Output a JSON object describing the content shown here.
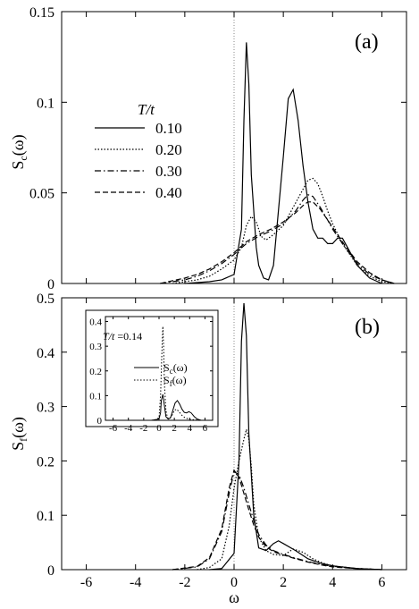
{
  "chart_data": [
    {
      "type": "line",
      "panel_label": "(a)",
      "ylabel_main": "S",
      "ylabel_sub": "c",
      "ylabel_arg": "(ω)",
      "xlabel": "",
      "xlim": [
        -7,
        7
      ],
      "ylim": [
        0,
        0.15
      ],
      "x_ticks": [
        -6,
        -4,
        -2,
        0,
        2,
        4,
        6
      ],
      "x_tick_labels": [
        "",
        "",
        "",
        "",
        "",
        "",
        ""
      ],
      "y_ticks": [
        0,
        0.05,
        0.1,
        0.15
      ],
      "y_tick_labels": [
        "0",
        "0.05",
        "0.1",
        "0.15"
      ],
      "legend_title": "T/t",
      "legend_placement": "upper-left",
      "series": [
        {
          "name": "0.10",
          "dash": "solid",
          "x": [
            -2.0,
            -1.0,
            -0.5,
            0.0,
            0.3,
            0.4,
            0.5,
            0.6,
            0.7,
            0.9,
            1.0,
            1.2,
            1.4,
            1.6,
            1.8,
            2.0,
            2.2,
            2.4,
            2.6,
            2.8,
            3.0,
            3.2,
            3.4,
            3.6,
            3.8,
            4.0,
            4.2,
            4.4,
            4.6,
            5.0,
            5.5,
            6.0
          ],
          "y": [
            0,
            0.001,
            0.002,
            0.005,
            0.03,
            0.09,
            0.133,
            0.11,
            0.06,
            0.02,
            0.01,
            0.003,
            0.002,
            0.01,
            0.04,
            0.07,
            0.102,
            0.107,
            0.09,
            0.065,
            0.045,
            0.03,
            0.025,
            0.025,
            0.022,
            0.022,
            0.025,
            0.025,
            0.02,
            0.01,
            0.003,
            0
          ]
        },
        {
          "name": "0.20",
          "dash": "dotted",
          "x": [
            -2.5,
            -1.5,
            -1.0,
            -0.5,
            0.0,
            0.3,
            0.5,
            0.7,
            0.9,
            1.1,
            1.3,
            1.6,
            2.0,
            2.4,
            2.8,
            3.0,
            3.2,
            3.4,
            3.6,
            3.8,
            4.0,
            4.4,
            5.0,
            5.5,
            6.0,
            6.5
          ],
          "y": [
            0,
            0.002,
            0.004,
            0.008,
            0.013,
            0.02,
            0.032,
            0.037,
            0.034,
            0.026,
            0.024,
            0.027,
            0.032,
            0.042,
            0.052,
            0.057,
            0.058,
            0.055,
            0.048,
            0.04,
            0.033,
            0.022,
            0.01,
            0.004,
            0.001,
            0
          ]
        },
        {
          "name": "0.30",
          "dash": "dashdot",
          "x": [
            -3.0,
            -2.0,
            -1.5,
            -1.0,
            -0.5,
            0.0,
            0.5,
            1.0,
            1.5,
            2.0,
            2.5,
            2.8,
            3.0,
            3.2,
            3.5,
            3.8,
            4.0,
            4.5,
            5.0,
            5.5,
            6.0,
            6.5
          ],
          "y": [
            0,
            0.002,
            0.004,
            0.007,
            0.011,
            0.016,
            0.022,
            0.026,
            0.029,
            0.033,
            0.04,
            0.046,
            0.049,
            0.048,
            0.042,
            0.035,
            0.03,
            0.02,
            0.011,
            0.005,
            0.002,
            0
          ]
        },
        {
          "name": "0.40",
          "dash": "dashed",
          "x": [
            -3.0,
            -2.0,
            -1.5,
            -1.0,
            -0.5,
            0.0,
            0.5,
            1.0,
            1.5,
            2.0,
            2.5,
            2.8,
            3.0,
            3.2,
            3.5,
            3.8,
            4.0,
            4.5,
            5.0,
            5.5,
            6.0,
            6.5
          ],
          "y": [
            0,
            0.003,
            0.005,
            0.008,
            0.012,
            0.017,
            0.023,
            0.027,
            0.03,
            0.034,
            0.039,
            0.043,
            0.045,
            0.045,
            0.041,
            0.035,
            0.031,
            0.021,
            0.012,
            0.006,
            0.002,
            0
          ]
        }
      ]
    },
    {
      "type": "line",
      "panel_label": "(b)",
      "ylabel_main": "S",
      "ylabel_sub": "f",
      "ylabel_arg": "(ω)",
      "xlabel": "ω",
      "xlim": [
        -7,
        7
      ],
      "ylim": [
        0,
        0.5
      ],
      "x_ticks": [
        -6,
        -4,
        -2,
        0,
        2,
        4,
        6
      ],
      "x_tick_labels": [
        "-6",
        "-4",
        "-2",
        "0",
        "2",
        "4",
        "6"
      ],
      "y_ticks": [
        0,
        0.1,
        0.2,
        0.3,
        0.4,
        0.5
      ],
      "y_tick_labels": [
        "0",
        "0.1",
        "0.2",
        "0.3",
        "0.4",
        "0.5"
      ],
      "series": [
        {
          "name": "0.10",
          "dash": "solid",
          "x": [
            -1.0,
            -0.5,
            0.0,
            0.2,
            0.3,
            0.4,
            0.5,
            0.6,
            0.8,
            1.0,
            1.3,
            1.6,
            1.8,
            2.0,
            2.5,
            3.0,
            3.5,
            4.0,
            5.0,
            6.0
          ],
          "y": [
            0,
            0.002,
            0.03,
            0.2,
            0.42,
            0.49,
            0.43,
            0.25,
            0.1,
            0.04,
            0.035,
            0.048,
            0.053,
            0.048,
            0.035,
            0.02,
            0.012,
            0.007,
            0.002,
            0
          ]
        },
        {
          "name": "0.20",
          "dash": "dotted",
          "x": [
            -1.5,
            -1.0,
            -0.5,
            -0.2,
            0.0,
            0.2,
            0.4,
            0.5,
            0.6,
            0.7,
            0.8,
            1.0,
            1.3,
            1.6,
            2.0,
            2.4,
            2.8,
            3.2,
            3.6,
            4.0,
            5.0,
            6.0
          ],
          "y": [
            0,
            0.004,
            0.02,
            0.08,
            0.15,
            0.2,
            0.24,
            0.258,
            0.24,
            0.19,
            0.12,
            0.06,
            0.035,
            0.028,
            0.026,
            0.038,
            0.032,
            0.02,
            0.012,
            0.007,
            0.002,
            0
          ]
        },
        {
          "name": "0.30",
          "dash": "dashdot",
          "x": [
            -2.5,
            -1.5,
            -1.0,
            -0.5,
            -0.2,
            0.0,
            0.2,
            0.4,
            0.6,
            0.8,
            1.0,
            1.3,
            1.6,
            2.0,
            2.5,
            3.0,
            3.5,
            4.0,
            5.0,
            6.0
          ],
          "y": [
            0,
            0.005,
            0.02,
            0.07,
            0.14,
            0.18,
            0.175,
            0.15,
            0.12,
            0.09,
            0.065,
            0.045,
            0.035,
            0.028,
            0.021,
            0.015,
            0.01,
            0.006,
            0.002,
            0
          ]
        },
        {
          "name": "0.40",
          "dash": "dashed",
          "x": [
            -2.5,
            -1.5,
            -1.0,
            -0.5,
            -0.2,
            0.0,
            0.2,
            0.4,
            0.6,
            0.8,
            1.0,
            1.3,
            1.6,
            2.0,
            2.5,
            3.0,
            3.5,
            4.0,
            5.0,
            6.0
          ],
          "y": [
            0,
            0.006,
            0.022,
            0.075,
            0.15,
            0.183,
            0.17,
            0.14,
            0.11,
            0.082,
            0.06,
            0.042,
            0.033,
            0.027,
            0.02,
            0.014,
            0.009,
            0.005,
            0.002,
            0
          ]
        }
      ],
      "inset": {
        "type": "line",
        "title_var": "T/t",
        "title_val": " =0.14",
        "xlim": [
          -7,
          7
        ],
        "ylim": [
          0,
          0.42
        ],
        "x_ticks": [
          -6,
          -4,
          -2,
          0,
          2,
          4,
          6
        ],
        "x_tick_labels": [
          "-6",
          "-4",
          "-2",
          "0",
          "2",
          "4",
          "6"
        ],
        "y_ticks": [
          0,
          0.1,
          0.2,
          0.3,
          0.4
        ],
        "y_tick_labels": [
          "0",
          "0.1",
          "0.2",
          "0.3",
          "0.4"
        ],
        "series": [
          {
            "label_main": "S",
            "label_sub": "c",
            "label_arg": "(ω)",
            "dash": "solid",
            "x": [
              -1.0,
              0.0,
              0.2,
              0.3,
              0.5,
              0.7,
              0.9,
              1.2,
              1.5,
              1.8,
              2.1,
              2.4,
              2.7,
              3.0,
              3.3,
              3.6,
              3.9,
              4.2,
              4.6,
              5.0,
              5.5
            ],
            "y": [
              0,
              0.005,
              0.03,
              0.08,
              0.105,
              0.06,
              0.015,
              0.005,
              0.01,
              0.04,
              0.07,
              0.08,
              0.065,
              0.045,
              0.032,
              0.03,
              0.035,
              0.03,
              0.015,
              0.005,
              0
            ]
          },
          {
            "label_main": "S",
            "label_sub": "f",
            "label_arg": "(ω)",
            "dash": "dotted",
            "x": [
              -1.0,
              -0.5,
              0.0,
              0.2,
              0.4,
              0.5,
              0.6,
              0.7,
              0.9,
              1.1,
              1.4,
              1.7,
              2.0,
              2.3,
              2.6,
              3.0,
              3.4,
              4.0,
              5.0,
              5.5
            ],
            "y": [
              0,
              0.002,
              0.01,
              0.1,
              0.3,
              0.38,
              0.3,
              0.15,
              0.04,
              0.01,
              0.008,
              0.02,
              0.04,
              0.045,
              0.035,
              0.02,
              0.01,
              0.004,
              0.001,
              0
            ]
          }
        ]
      }
    }
  ]
}
